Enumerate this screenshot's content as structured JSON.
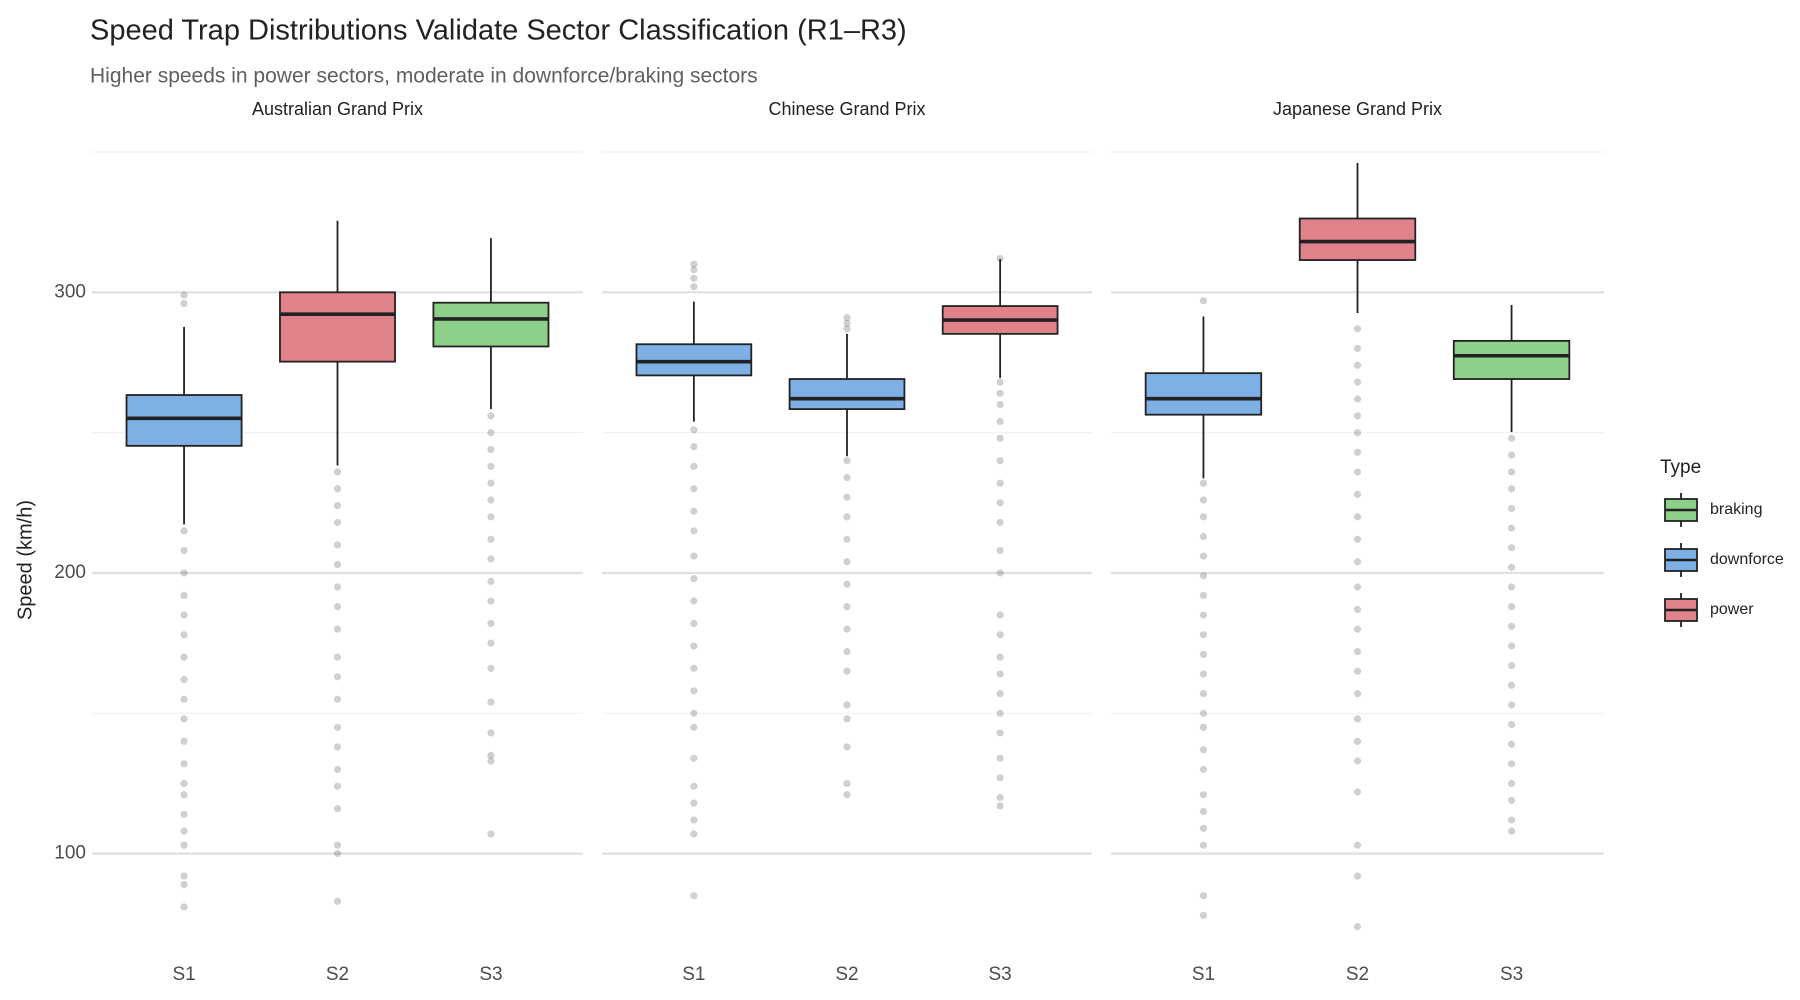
{
  "chart_data": {
    "type": "box",
    "title": "Speed Trap Distributions Validate Sector Classification (R1–R3)",
    "subtitle": "Higher speeds in power sectors, moderate in downforce/braking sectors",
    "ylabel": "Speed (km/h)",
    "legend_title": "Type",
    "legend_position": "right",
    "series": [
      {
        "name": "braking",
        "color": "#8ecf8a"
      },
      {
        "name": "downforce",
        "color": "#7eb0e6"
      },
      {
        "name": "power",
        "color": "#e0828a"
      }
    ],
    "ylim": [
      71,
      350
    ],
    "yticks": [
      100,
      200,
      300
    ],
    "yminor": [
      150,
      250,
      350
    ],
    "grid": true,
    "facets": [
      {
        "title": "Australian Grand Prix",
        "categories": [
          "S1",
          "S2",
          "S3"
        ],
        "boxes": [
          {
            "group": "downforce",
            "whisker_low": 217.3,
            "q1": 245.3,
            "median": 255.1,
            "q3": 263.4,
            "whisker_high": 287.7,
            "outliers": [
              299,
              296,
              215,
              208,
              200,
              192,
              185,
              178,
              170,
              162,
              155,
              148,
              140,
              132,
              125,
              121,
              114,
              108,
              103,
              92,
              89,
              81
            ]
          },
          {
            "group": "power",
            "whisker_low": 238.3,
            "q1": 275.3,
            "median": 292.2,
            "q3": 300,
            "whisker_high": 325.5,
            "outliers": [
              236,
              230,
              224,
              218,
              210,
              203,
              195,
              188,
              180,
              170,
              163,
              155,
              145,
              138,
              130,
              124,
              116,
              103,
              100,
              83
            ]
          },
          {
            "group": "braking",
            "whisker_low": 258.4,
            "q1": 280.7,
            "median": 290.5,
            "q3": 296.3,
            "whisker_high": 319.3,
            "outliers": [
              256,
              250,
              244,
              238,
              232,
              226,
              220,
              212,
              205,
              197,
              190,
              182,
              175,
              166,
              154,
              143,
              135,
              133,
              107
            ]
          }
        ]
      },
      {
        "title": "Chinese Grand Prix",
        "categories": [
          "S1",
          "S2",
          "S3"
        ],
        "boxes": [
          {
            "group": "downforce",
            "whisker_low": 253.9,
            "q1": 270.4,
            "median": 275.3,
            "q3": 281.5,
            "whisker_high": 296.7,
            "outliers": [
              310,
              308,
              305,
              302,
              251,
              245,
              238,
              230,
              222,
              215,
              206,
              198,
              190,
              182,
              174,
              166,
              158,
              150,
              145,
              134,
              124,
              118,
              112,
              107,
              85
            ]
          },
          {
            "group": "downforce",
            "whisker_low": 241.6,
            "q1": 258.4,
            "median": 262.1,
            "q3": 269.1,
            "whisker_high": 285.2,
            "outliers": [
              291,
              289,
              287,
              240,
              234,
              227,
              220,
              212,
              204,
              196,
              188,
              180,
              172,
              165,
              153,
              148,
              138,
              125,
              121
            ]
          },
          {
            "group": "power",
            "whisker_low": 269.5,
            "q1": 285.2,
            "median": 290.1,
            "q3": 295.1,
            "whisker_high": 311.9,
            "outliers": [
              312,
              268,
              264,
              260,
              254,
              248,
              240,
              232,
              225,
              218,
              208,
              200,
              185,
              178,
              170,
              164,
              157,
              150,
              143,
              134,
              127,
              120,
              117
            ]
          }
        ]
      },
      {
        "title": "Japanese Grand Prix",
        "categories": [
          "S1",
          "S2",
          "S3"
        ],
        "boxes": [
          {
            "group": "downforce",
            "whisker_low": 233.7,
            "q1": 256.4,
            "median": 262.1,
            "q3": 271.2,
            "whisker_high": 291.4,
            "outliers": [
              297,
              232,
              226,
              220,
              213,
              206,
              199,
              192,
              185,
              178,
              171,
              164,
              157,
              150,
              145,
              137,
              130,
              121,
              115,
              109,
              103,
              85,
              78
            ]
          },
          {
            "group": "power",
            "whisker_low": 292.6,
            "q1": 311.5,
            "median": 318.1,
            "q3": 326.3,
            "whisker_high": 346.1,
            "outliers": [
              287,
              280,
              274,
              268,
              262,
              256,
              250,
              243,
              236,
              228,
              220,
              212,
              204,
              195,
              187,
              180,
              172,
              165,
              157,
              148,
              140,
              133,
              122,
              103,
              92,
              74
            ]
          },
          {
            "group": "braking",
            "whisker_low": 250.2,
            "q1": 269.1,
            "median": 277.4,
            "q3": 282.7,
            "whisker_high": 295.5,
            "outliers": [
              248,
              242,
              236,
              230,
              223,
              216,
              209,
              202,
              195,
              188,
              181,
              174,
              167,
              160,
              153,
              146,
              139,
              132,
              125,
              119,
              112,
              108
            ]
          }
        ]
      }
    ]
  }
}
